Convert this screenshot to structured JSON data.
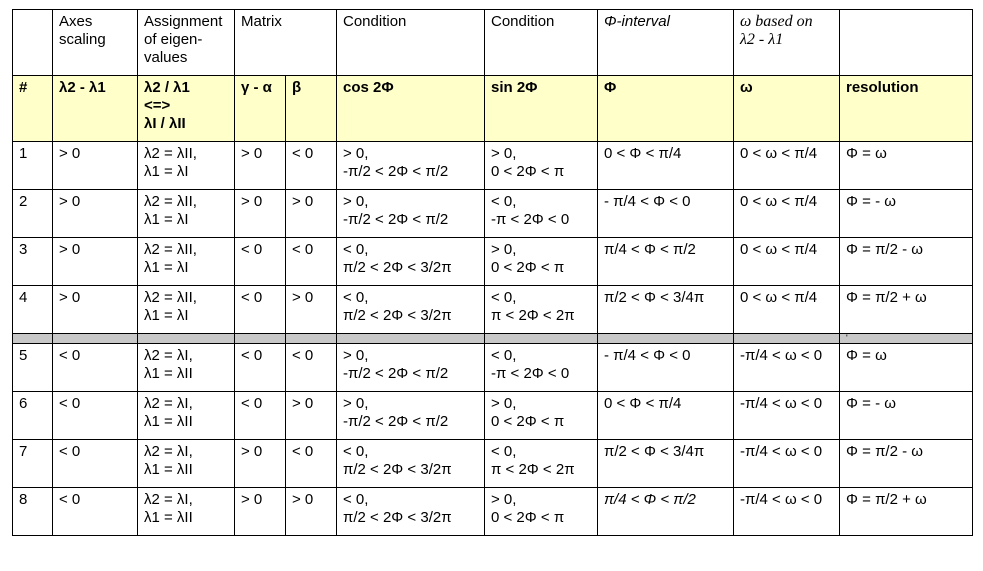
{
  "header_top": {
    "axes_scaling": "Axes\nscaling",
    "assignment": "Assignment\nof eigen-\nvalues",
    "matrix": "Matrix",
    "condition1": "Condition",
    "condition2": "Condition",
    "phi_interval": "Φ-interval",
    "omega_based": "ω based on\nλ2 - λ1"
  },
  "header_sub": {
    "num": "#",
    "diff": "λ2 - λ1",
    "ratio": "λ2 / λ1\n<=>\nλI / λII",
    "gamma_alpha": "γ - α",
    "beta": "β",
    "cos": "cos 2Φ",
    "sin": "sin 2Φ",
    "phi": "Φ",
    "omega": "ω",
    "resolution": "resolution"
  },
  "rows_top": [
    {
      "num": "1",
      "diff": "> 0",
      "assign": "λ2 = λII,\nλ1 = λI",
      "ga": "> 0",
      "beta": "< 0",
      "cos": "> 0,\n-π/2 < 2Φ < π/2",
      "sin": "> 0,\n0 < 2Φ < π",
      "phi": "0 < Φ < π/4",
      "omega": "0 < ω < π/4",
      "res": "Φ = ω"
    },
    {
      "num": "2",
      "diff": "> 0",
      "assign": "λ2 = λII,\nλ1 = λI",
      "ga": "> 0",
      "beta": "> 0",
      "cos": "> 0,\n-π/2 < 2Φ < π/2",
      "sin": "< 0,\n-π < 2Φ < 0",
      "phi": "- π/4 < Φ < 0",
      "omega": "0 < ω < π/4",
      "res": "Φ = - ω"
    },
    {
      "num": "3",
      "diff": "> 0",
      "assign": "λ2 = λII,\nλ1 = λI",
      "ga": "< 0",
      "beta": "< 0",
      "cos": "< 0,\nπ/2 < 2Φ < 3/2π",
      "sin": "> 0,\n0 < 2Φ < π",
      "phi": "π/4 < Φ < π/2",
      "omega": "0 < ω < π/4",
      "res": "Φ =  π/2 - ω"
    },
    {
      "num": "4",
      "diff": "> 0",
      "assign": "λ2 = λII,\nλ1 = λI",
      "ga": "< 0",
      "beta": "> 0",
      "cos": "< 0,\nπ/2 < 2Φ < 3/2π",
      "sin": "< 0,\nπ < 2Φ < 2π",
      "phi": "π/2 < Φ < 3/4π",
      "omega": "0 < ω < π/4",
      "res": "Φ =  π/2 + ω"
    }
  ],
  "separator_mark": "'",
  "rows_bottom": [
    {
      "num": "5",
      "diff": "< 0",
      "assign": "λ2 = λI,\nλ1 = λII",
      "ga": "< 0",
      "beta": "< 0",
      "cos": "> 0,\n-π/2 < 2Φ < π/2",
      "sin": "< 0,\n-π < 2Φ < 0",
      "phi": "- π/4 < Φ < 0",
      "omega": "-π/4 < ω < 0",
      "res": "Φ = ω"
    },
    {
      "num": "6",
      "diff": "< 0",
      "assign": "λ2 = λI,\nλ1 = λII",
      "ga": "< 0",
      "beta": "> 0",
      "cos": "> 0,\n-π/2 < 2Φ < π/2",
      "sin": "> 0,\n0 < 2Φ < π",
      "phi": "0 < Φ < π/4",
      "omega": "-π/4 < ω < 0",
      "res": "Φ = - ω"
    },
    {
      "num": "7",
      "diff": "< 0",
      "assign": "λ2 = λI,\nλ1 = λII",
      "ga": "> 0",
      "beta": "< 0",
      "cos": "< 0,\nπ/2 < 2Φ < 3/2π",
      "sin": "< 0,\nπ < 2Φ < 2π",
      "phi": "π/2 < Φ < 3/4π",
      "omega": "-π/4 < ω < 0",
      "res": "Φ =  π/2 - ω"
    },
    {
      "num": "8",
      "diff": "< 0",
      "assign": "λ2 = λI,\nλ1 = λII",
      "ga": "> 0",
      "beta": "> 0",
      "cos": "< 0,\nπ/2 < 2Φ < 3/2π",
      "sin": "> 0,\n0 < 2Φ < π",
      "phi": "π/4 <  Φ < π/2",
      "omega": "-π/4 < ω < 0",
      "res": "Φ =  π/2 + ω"
    }
  ]
}
